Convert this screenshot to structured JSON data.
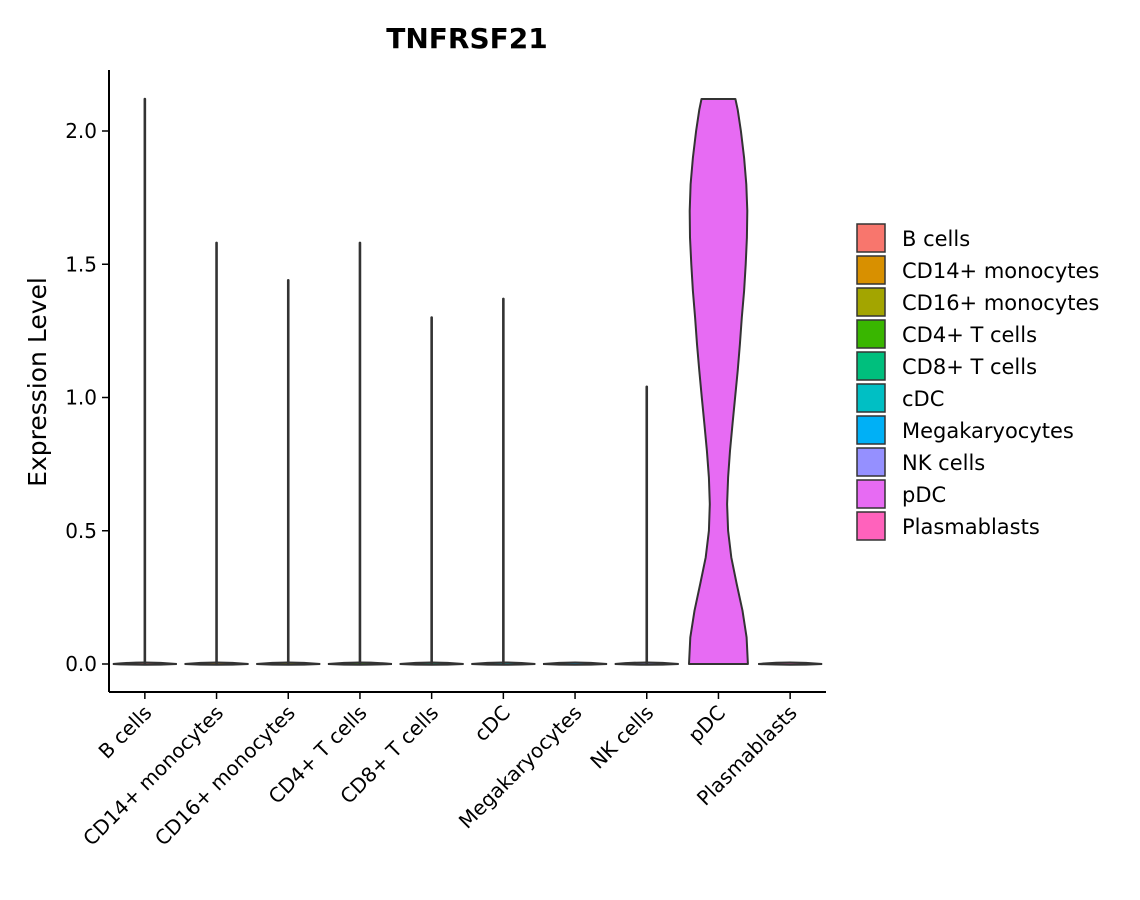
{
  "chart_data": {
    "type": "violin",
    "title": "TNFRSF21",
    "xlabel": "",
    "ylabel": "Expression Level",
    "ylim": [
      -0.1,
      2.23
    ],
    "yticks": [
      0.0,
      0.5,
      1.0,
      1.5,
      2.0
    ],
    "ytick_labels": [
      "0.0",
      "0.5",
      "1.0",
      "1.5",
      "2.0"
    ],
    "categories": [
      "B cells",
      "CD14+ monocytes",
      "CD16+ monocytes",
      "CD4+ T cells",
      "CD8+ T cells",
      "cDC",
      "Megakaryocytes",
      "NK cells",
      "pDC",
      "Plasmablasts"
    ],
    "max_values": [
      2.12,
      1.58,
      1.44,
      1.58,
      1.3,
      1.37,
      0.0,
      1.04,
      2.12,
      0.0
    ],
    "pdc_profile": [
      [
        0.0,
        0.92
      ],
      [
        0.1,
        0.88
      ],
      [
        0.2,
        0.75
      ],
      [
        0.3,
        0.57
      ],
      [
        0.4,
        0.4
      ],
      [
        0.5,
        0.3
      ],
      [
        0.6,
        0.27
      ],
      [
        0.7,
        0.3
      ],
      [
        0.8,
        0.36
      ],
      [
        0.9,
        0.44
      ],
      [
        1.0,
        0.52
      ],
      [
        1.1,
        0.6
      ],
      [
        1.2,
        0.67
      ],
      [
        1.3,
        0.73
      ],
      [
        1.4,
        0.8
      ],
      [
        1.5,
        0.85
      ],
      [
        1.6,
        0.89
      ],
      [
        1.7,
        0.9
      ],
      [
        1.8,
        0.87
      ],
      [
        1.9,
        0.8
      ],
      [
        2.0,
        0.7
      ],
      [
        2.08,
        0.6
      ],
      [
        2.12,
        0.53
      ]
    ],
    "legend": {
      "position": "right",
      "entries": [
        {
          "label": "B cells",
          "color": "#F8766D"
        },
        {
          "label": "CD14+ monocytes",
          "color": "#D89000"
        },
        {
          "label": "CD16+ monocytes",
          "color": "#A3A500"
        },
        {
          "label": "CD4+ T cells",
          "color": "#39B600"
        },
        {
          "label": "CD8+ T cells",
          "color": "#00BF7D"
        },
        {
          "label": "cDC",
          "color": "#00BFC4"
        },
        {
          "label": "Megakaryocytes",
          "color": "#00B0F6"
        },
        {
          "label": "NK cells",
          "color": "#9590FF"
        },
        {
          "label": "pDC",
          "color": "#E76BF3"
        },
        {
          "label": "Plasmablasts",
          "color": "#FF62BC"
        }
      ]
    },
    "outline_color": "#333333"
  }
}
